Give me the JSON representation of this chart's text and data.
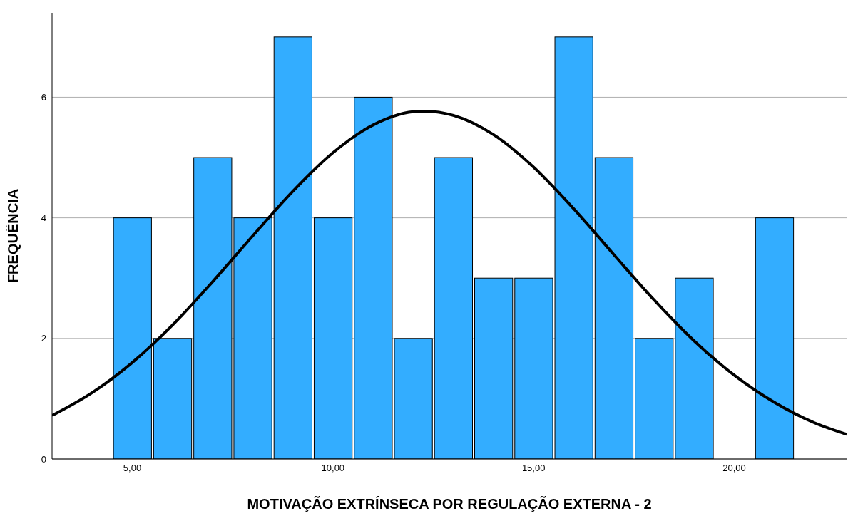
{
  "chart_data": {
    "type": "histogram",
    "xlabel": "MOTIVAÇÃO EXTRÍNSECA POR REGULAÇÃO EXTERNA - 2",
    "ylabel": "FREQUÊNCIA",
    "xlim": [
      3,
      22.8
    ],
    "xticks": [
      {
        "value": 5,
        "label": "5,00"
      },
      {
        "value": 10,
        "label": "10,00"
      },
      {
        "value": 15,
        "label": "15,00"
      },
      {
        "value": 20,
        "label": "20,00"
      }
    ],
    "ylim": [
      0,
      7.4
    ],
    "yticks": [
      0,
      2,
      4,
      6
    ],
    "grid": "y",
    "legend": false,
    "series": [
      {
        "color": "#33adff",
        "bins": [
          4.5,
          5.5,
          6.5,
          7.5,
          8.5,
          9.5,
          10.5,
          11.5,
          12.5,
          13.5,
          14.5,
          15.5,
          16.5,
          17.5,
          18.5,
          19.5,
          20.5,
          21.5
        ],
        "values": [
          4,
          2,
          5,
          4,
          7,
          4,
          6,
          2,
          5,
          3,
          3,
          7,
          5,
          2,
          3,
          0,
          4
        ]
      },
      {
        "type": "line",
        "color": "#000000",
        "marker": "none",
        "x": [
          3,
          4,
          5,
          6,
          7,
          8,
          9,
          10,
          11,
          12,
          12.3,
          13,
          14,
          15,
          16,
          17,
          18,
          19,
          20,
          21,
          22,
          22.8
        ],
        "values": [
          0.72,
          1.1,
          1.6,
          2.22,
          2.94,
          3.7,
          4.44,
          5.08,
          5.54,
          5.76,
          5.77,
          5.7,
          5.38,
          4.84,
          4.15,
          3.39,
          2.64,
          1.96,
          1.39,
          0.94,
          0.6,
          0.41
        ]
      }
    ]
  }
}
